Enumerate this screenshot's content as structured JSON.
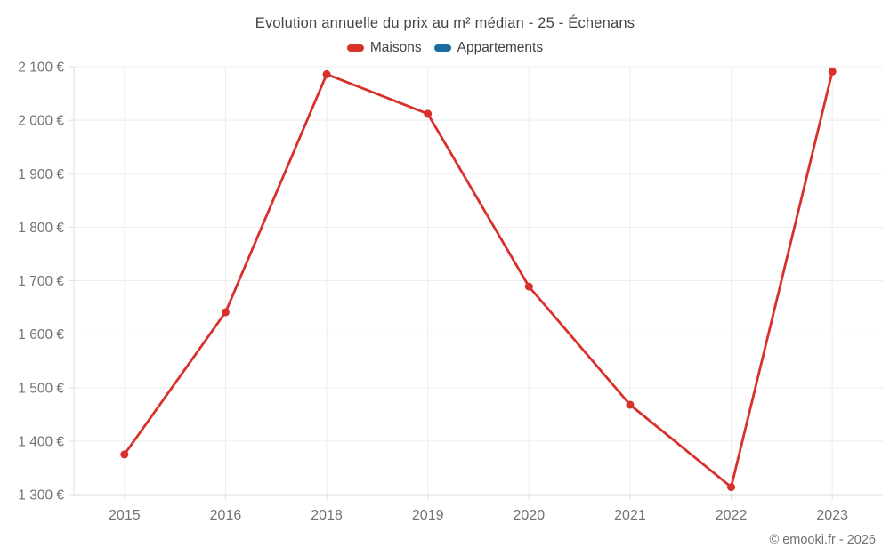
{
  "chart": {
    "title": "Evolution annuelle du prix au m² médian - 25 - Échenans",
    "footer": "© emooki.fr - 2026",
    "legend": [
      {
        "label": "Maisons",
        "color": "#d8312b"
      },
      {
        "label": "Appartements",
        "color": "#176e9c"
      }
    ]
  },
  "chart_data": {
    "type": "line",
    "title": "Evolution annuelle du prix au m² médian - 25 - Échenans",
    "categories": [
      "2015",
      "2016",
      "2018",
      "2019",
      "2020",
      "2021",
      "2022",
      "2023"
    ],
    "series": [
      {
        "name": "Maisons",
        "color": "#d8312b",
        "values": [
          1375,
          1641,
          2086,
          2012,
          1689,
          1468,
          1314,
          2091
        ]
      },
      {
        "name": "Appartements",
        "color": "#176e9c",
        "values": []
      }
    ],
    "xlabel": "",
    "ylabel": "",
    "ylim": [
      1300,
      2100
    ],
    "ytick_step": 100,
    "yticks": [
      {
        "value": 1300,
        "label": "1 300 €"
      },
      {
        "value": 1400,
        "label": "1 400 €"
      },
      {
        "value": 1500,
        "label": "1 500 €"
      },
      {
        "value": 1600,
        "label": "1 600 €"
      },
      {
        "value": 1700,
        "label": "1 700 €"
      },
      {
        "value": 1800,
        "label": "1 800 €"
      },
      {
        "value": 1900,
        "label": "1 900 €"
      },
      {
        "value": 2000,
        "label": "2 000 €"
      },
      {
        "value": 2100,
        "label": "2 100 €"
      }
    ],
    "grid": true,
    "legend_position": "top",
    "colors": {
      "grid": "#ededed",
      "axis": "#dcdcdc",
      "tick_label": "#6f7478"
    }
  }
}
